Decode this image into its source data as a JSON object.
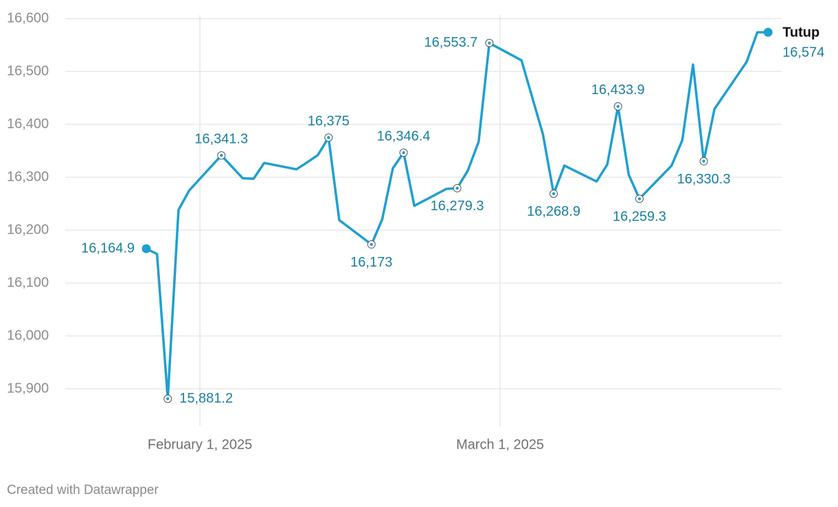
{
  "chart_data": {
    "type": "line",
    "footer": "Created with Datawrapper",
    "x": [
      "2025-01-27",
      "2025-01-28",
      "2025-01-29",
      "2025-01-30",
      "2025-01-31",
      "2025-02-03",
      "2025-02-05",
      "2025-02-06",
      "2025-02-07",
      "2025-02-10",
      "2025-02-11",
      "2025-02-12",
      "2025-02-13",
      "2025-02-14",
      "2025-02-17",
      "2025-02-18",
      "2025-02-19",
      "2025-02-20",
      "2025-02-21",
      "2025-02-24",
      "2025-02-25",
      "2025-02-26",
      "2025-02-27",
      "2025-02-28",
      "2025-03-03",
      "2025-03-05",
      "2025-03-06",
      "2025-03-07",
      "2025-03-10",
      "2025-03-11",
      "2025-03-12",
      "2025-03-13",
      "2025-03-14",
      "2025-03-17",
      "2025-03-18",
      "2025-03-19",
      "2025-03-20",
      "2025-03-21",
      "2025-03-24",
      "2025-03-25",
      "2025-03-26"
    ],
    "series": [
      {
        "name": "Tutup",
        "color": "#1f9fcf",
        "values": [
          16164.9,
          16155,
          15881.2,
          16238,
          16275,
          16341.3,
          16298,
          16297,
          16327,
          16315,
          16328,
          16342,
          16375,
          16219,
          16173,
          16220,
          16317,
          16346.4,
          16246,
          16278,
          16279.3,
          16313,
          16367,
          16553.7,
          16521,
          16381,
          16268.9,
          16322,
          16292,
          16324,
          16433.9,
          16305,
          16259.3,
          16322,
          16370,
          16513,
          16330.3,
          16429,
          16518,
          16574,
          16574
        ],
        "value_labels": [
          "16,164.9",
          null,
          "15,881.2",
          null,
          null,
          "16,341.3",
          null,
          null,
          null,
          null,
          null,
          null,
          "16,375",
          null,
          "16,173",
          null,
          null,
          "16,346.4",
          null,
          null,
          "16,279.3",
          null,
          null,
          "16,553.7",
          null,
          null,
          "16,268.9",
          null,
          null,
          null,
          "16,433.9",
          null,
          "16,259.3",
          null,
          null,
          null,
          "16,330.3",
          null,
          null,
          null,
          "16,574"
        ]
      }
    ],
    "xlim": [
      "2025-01-26",
      "2025-03-27"
    ],
    "xticks": [
      {
        "value": "2025-02-01",
        "label": "February 1, 2025"
      },
      {
        "value": "2025-03-01",
        "label": "March 1, 2025"
      }
    ],
    "ylim": [
      15830,
      16600
    ],
    "yticks": [
      {
        "value": 15900,
        "label": "15,900"
      },
      {
        "value": 16000,
        "label": "16,000"
      },
      {
        "value": 16100,
        "label": "16,100"
      },
      {
        "value": 16200,
        "label": "16,200"
      },
      {
        "value": 16300,
        "label": "16,300"
      },
      {
        "value": 16400,
        "label": "16,400"
      },
      {
        "value": 16500,
        "label": "16,500"
      },
      {
        "value": 16600,
        "label": "16,600"
      }
    ],
    "grid": true
  }
}
